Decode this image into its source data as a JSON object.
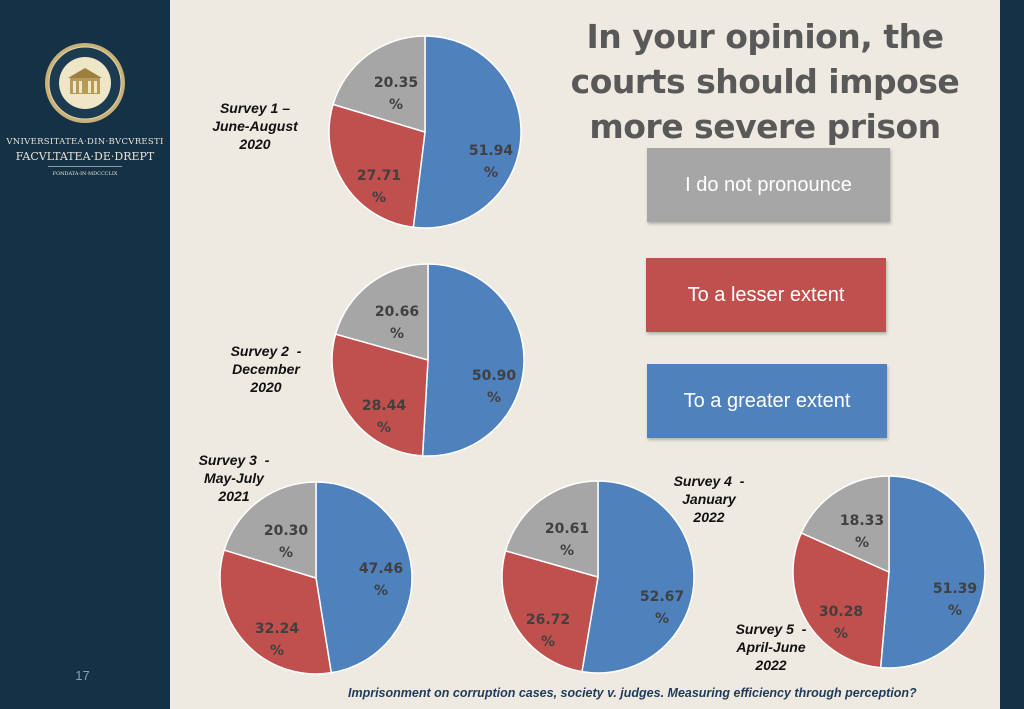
{
  "sidebar": {
    "seal_arc_text": "VNIVERSITAS · BVCVRESTIENSIS",
    "university": "VNIVERSITATEA·DIN·BVCVRESTI",
    "faculty": "FACVLTATEA·DE·DREPT",
    "founded": "FONDATA·IN·MDCCCLIX",
    "page_number": "17"
  },
  "title": "In your opinion, the courts should impose more severe prison sentences:",
  "legend": [
    {
      "label": "I do not pronounce",
      "color": "#a6a6a6"
    },
    {
      "label": "To a lesser extent",
      "color": "#c0504d"
    },
    {
      "label": "To a greater extent",
      "color": "#4f81bd"
    }
  ],
  "footer": "Imprisonment on corruption cases, society v. judges. Measuring efficiency through perception?",
  "chart_data": [
    {
      "type": "pie",
      "title": "Survey 1 – June-August 2020",
      "labels": [
        "To a greater extent",
        "To a lesser extent",
        "I do not pronounce"
      ],
      "values": [
        51.94,
        27.71,
        20.35
      ],
      "display": [
        [
          "51.94",
          "%"
        ],
        [
          "27.71",
          "%"
        ],
        [
          "20.35",
          "%"
        ]
      ]
    },
    {
      "type": "pie",
      "title": "Survey 2 - December 2020",
      "labels": [
        "To a greater extent",
        "To a lesser extent",
        "I do not pronounce"
      ],
      "values": [
        50.9,
        28.44,
        20.66
      ],
      "display": [
        [
          "50.90",
          "%"
        ],
        [
          "28.44",
          "%"
        ],
        [
          "20.66",
          "%"
        ]
      ]
    },
    {
      "type": "pie",
      "title": "Survey 3 - May-July 2021",
      "labels": [
        "To a greater extent",
        "To a lesser extent",
        "I do not pronounce"
      ],
      "values": [
        47.46,
        32.24,
        20.3
      ],
      "display": [
        [
          "47.46",
          "%"
        ],
        [
          "32.24",
          "%"
        ],
        [
          "20.30",
          "%"
        ]
      ]
    },
    {
      "type": "pie",
      "title": "Survey 4 - January 2022",
      "labels": [
        "To a greater extent",
        "To a lesser extent",
        "I do not pronounce"
      ],
      "values": [
        52.67,
        26.72,
        20.61
      ],
      "display": [
        [
          "52.67",
          "%"
        ],
        [
          "26.72",
          "%"
        ],
        [
          "20.61",
          "%"
        ]
      ]
    },
    {
      "type": "pie",
      "title": "Survey 5 - April-June 2022",
      "labels": [
        "To a greater extent",
        "To a lesser extent",
        "I do not pronounce"
      ],
      "values": [
        51.39,
        30.28,
        18.33
      ],
      "display": [
        [
          "51.39",
          "%"
        ],
        [
          "30.28",
          "%"
        ],
        [
          "18.33",
          "%"
        ]
      ]
    }
  ],
  "survey_labels": [
    "Survey 1 –\nJune-August\n2020",
    "Survey 2  -\nDecember\n2020",
    "Survey 3  -\nMay-July\n2021",
    "Survey 4  -\nJanuary\n2022",
    "Survey 5  -\nApril-June\n2022"
  ]
}
